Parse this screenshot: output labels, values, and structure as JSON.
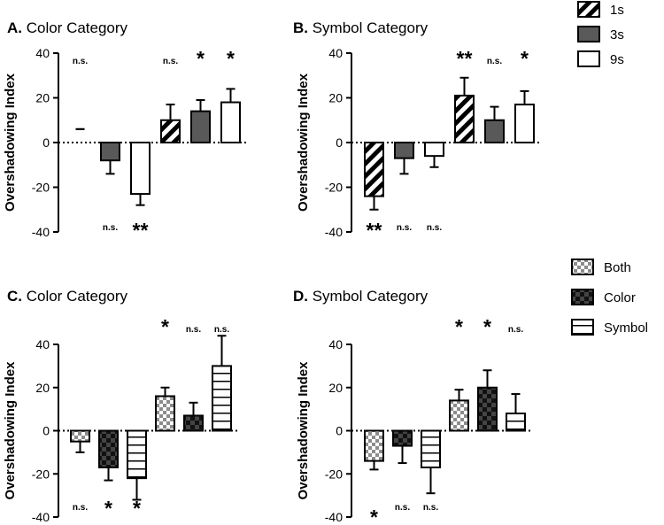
{
  "chart_data": [
    {
      "type": "bar",
      "title_letter": "A.",
      "title": "Color Category",
      "ylabel": "Overshadowing Index",
      "ylim": [
        -40,
        40
      ],
      "yticks": [
        40,
        20,
        0,
        -20,
        -40
      ],
      "legend": "bar-patterns",
      "bars": [
        {
          "series": "1s",
          "value": 0,
          "error": 6,
          "sig": "n.s."
        },
        {
          "series": "3s",
          "value": -8,
          "error": 6,
          "sig": "n.s."
        },
        {
          "series": "9s",
          "value": -23,
          "error": 5,
          "sig": "**"
        },
        {
          "series": "1s",
          "value": 10,
          "error": 7,
          "sig": "n.s."
        },
        {
          "series": "3s",
          "value": 14,
          "error": 5,
          "sig": "*"
        },
        {
          "series": "9s",
          "value": 18,
          "error": 6,
          "sig": "*"
        }
      ]
    },
    {
      "type": "bar",
      "title_letter": "B.",
      "title": "Symbol Category",
      "ylabel": "Overshadowing Index",
      "ylim": [
        -40,
        40
      ],
      "yticks": [
        40,
        20,
        0,
        -20,
        -40
      ],
      "bars": [
        {
          "series": "1s",
          "value": -24,
          "error": 6,
          "sig": "**"
        },
        {
          "series": "3s",
          "value": -7,
          "error": 7,
          "sig": "n.s."
        },
        {
          "series": "9s",
          "value": -6,
          "error": 5,
          "sig": "n.s."
        },
        {
          "series": "1s",
          "value": 21,
          "error": 8,
          "sig": "**"
        },
        {
          "series": "3s",
          "value": 10,
          "error": 6,
          "sig": "n.s."
        },
        {
          "series": "9s",
          "value": 17,
          "error": 6,
          "sig": "*"
        }
      ]
    },
    {
      "type": "bar",
      "title_letter": "C.",
      "title": "Color Category",
      "ylabel": "Overshadowing Index",
      "ylim": [
        -40,
        40
      ],
      "yticks": [
        40,
        20,
        0,
        -20,
        -40
      ],
      "bars": [
        {
          "series": "Both",
          "value": -5,
          "error": 5,
          "sig": "n.s."
        },
        {
          "series": "Color",
          "value": -17,
          "error": 6,
          "sig": "*"
        },
        {
          "series": "Symbol",
          "value": -22,
          "error": 10,
          "sig": "*"
        },
        {
          "series": "Both",
          "value": 16,
          "error": 4,
          "sig": "*"
        },
        {
          "series": "Color",
          "value": 7,
          "error": 6,
          "sig": "n.s."
        },
        {
          "series": "Symbol",
          "value": 30,
          "error": 14,
          "sig": "n.s."
        }
      ]
    },
    {
      "type": "bar",
      "title_letter": "D.",
      "title": "Symbol Category",
      "ylabel": "Overshadowing Index",
      "ylim": [
        -40,
        40
      ],
      "yticks": [
        40,
        20,
        0,
        -20,
        -40
      ],
      "bars": [
        {
          "series": "Both",
          "value": -14,
          "error": 4,
          "sig": "*"
        },
        {
          "series": "Color",
          "value": -7,
          "error": 8,
          "sig": "n.s."
        },
        {
          "series": "Symbol",
          "value": -17,
          "error": 12,
          "sig": "n.s."
        },
        {
          "series": "Both",
          "value": 14,
          "error": 5,
          "sig": "*"
        },
        {
          "series": "Color",
          "value": 20,
          "error": 8,
          "sig": "*"
        },
        {
          "series": "Symbol",
          "value": 8,
          "error": 9,
          "sig": "n.s."
        }
      ]
    }
  ],
  "legends": {
    "duration": [
      {
        "label": "1s",
        "pattern": "diag"
      },
      {
        "label": "3s",
        "pattern": "gray"
      },
      {
        "label": "9s",
        "pattern": "white"
      }
    ],
    "category": [
      {
        "label": "Both",
        "pattern": "checker"
      },
      {
        "label": "Color",
        "pattern": "darkchecker"
      },
      {
        "label": "Symbol",
        "pattern": "hstripe"
      }
    ]
  },
  "colors": {
    "black": "#000000",
    "gray": "#595959",
    "white": "#ffffff",
    "checker_light": "#d9d9d9",
    "checker_dark": "#3a3a3a"
  }
}
